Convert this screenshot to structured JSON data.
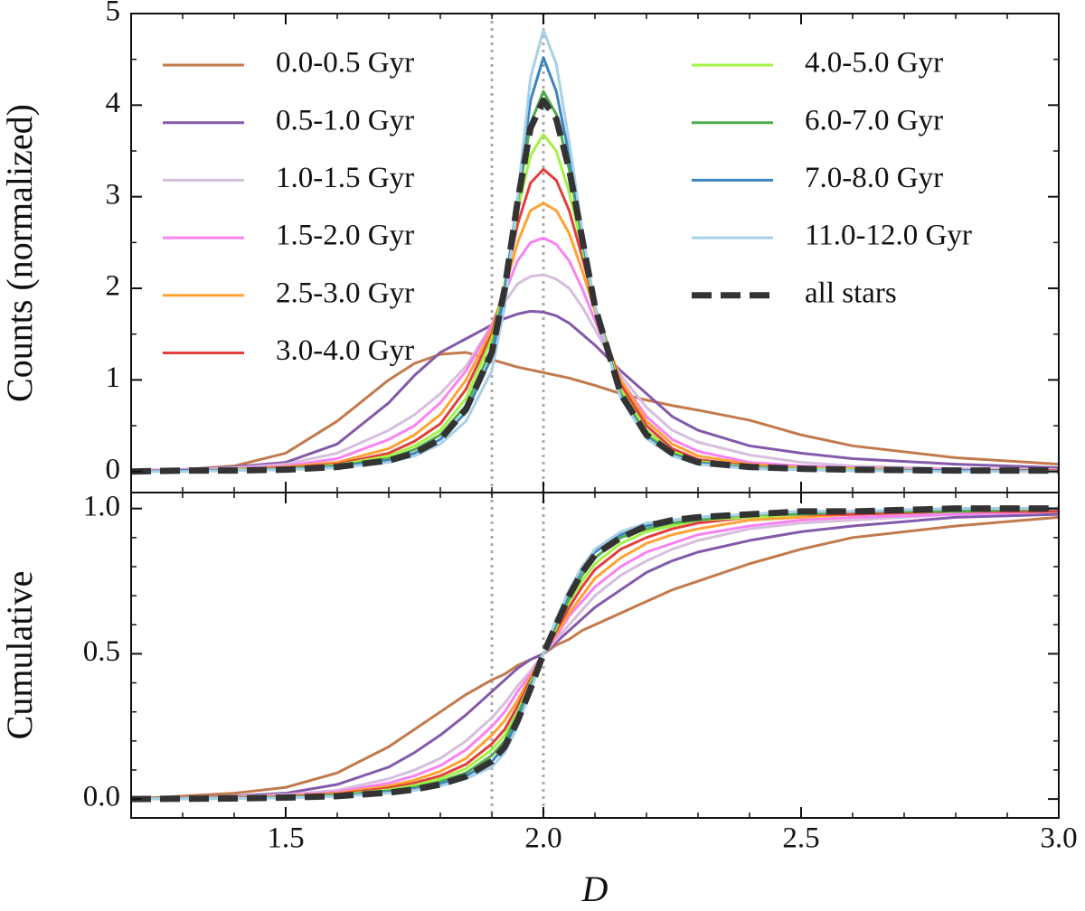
{
  "chart_data": [
    {
      "type": "line",
      "ylabel": "Counts (normalized)",
      "x": [
        1.2,
        1.3,
        1.4,
        1.5,
        1.6,
        1.7,
        1.75,
        1.8,
        1.85,
        1.9,
        1.925,
        1.95,
        1.975,
        2.0,
        2.025,
        2.05,
        2.075,
        2.1,
        2.15,
        2.2,
        2.25,
        2.3,
        2.4,
        2.5,
        2.6,
        2.8,
        3.0
      ],
      "xlim": [
        1.2,
        3.0
      ],
      "xticks": [
        1.5,
        2,
        2.5,
        3
      ],
      "show_xtick_labels": false,
      "minor_xticks": [
        1.3,
        1.4,
        1.6,
        1.7,
        1.8,
        1.9,
        2.1,
        2.2,
        2.3,
        2.4,
        2.6,
        2.7,
        2.8,
        2.9
      ],
      "ylim": [
        -0.23,
        5
      ],
      "yticks": [
        0,
        1,
        2,
        3,
        4,
        5
      ],
      "minor_yticks": [
        0.5,
        1.5,
        2.5,
        3.5,
        4.5
      ],
      "vlines": [
        1.9,
        2.0
      ],
      "legend": "upper",
      "series": [
        {
          "name": "0.0-0.5 Gyr",
          "color": "#c27a4c",
          "values": [
            0.01,
            0.02,
            0.06,
            0.2,
            0.55,
            1.0,
            1.18,
            1.28,
            1.3,
            1.22,
            1.18,
            1.14,
            1.11,
            1.08,
            1.05,
            1.02,
            0.98,
            0.94,
            0.85,
            0.78,
            0.72,
            0.67,
            0.56,
            0.4,
            0.28,
            0.15,
            0.08
          ]
        },
        {
          "name": "0.5-1.0 Gyr",
          "color": "#8359aa",
          "values": [
            0.01,
            0.02,
            0.05,
            0.1,
            0.3,
            0.75,
            1.05,
            1.3,
            1.45,
            1.6,
            1.67,
            1.72,
            1.75,
            1.74,
            1.7,
            1.62,
            1.5,
            1.38,
            1.1,
            0.85,
            0.6,
            0.45,
            0.28,
            0.2,
            0.14,
            0.08,
            0.04
          ]
        },
        {
          "name": "1.0-1.5 Gyr",
          "color": "#d6bedc",
          "values": [
            0.01,
            0.02,
            0.04,
            0.08,
            0.2,
            0.45,
            0.62,
            0.85,
            1.15,
            1.6,
            1.85,
            2.05,
            2.13,
            2.15,
            2.1,
            2.0,
            1.8,
            1.55,
            1.05,
            0.7,
            0.45,
            0.32,
            0.18,
            0.1,
            0.06,
            0.03,
            0.02
          ]
        },
        {
          "name": "1.5-2.0 Gyr",
          "color": "#f982f2",
          "values": [
            0.01,
            0.02,
            0.03,
            0.06,
            0.14,
            0.35,
            0.5,
            0.75,
            1.1,
            1.6,
            1.95,
            2.3,
            2.5,
            2.55,
            2.48,
            2.3,
            2.0,
            1.65,
            1.0,
            0.6,
            0.35,
            0.22,
            0.1,
            0.06,
            0.04,
            0.02,
            0.01
          ]
        },
        {
          "name": "2.5-3.0 Gyr",
          "color": "#ffa233",
          "values": [
            0,
            0.01,
            0.02,
            0.05,
            0.1,
            0.25,
            0.4,
            0.62,
            1.0,
            1.55,
            2.0,
            2.5,
            2.85,
            2.93,
            2.85,
            2.6,
            2.2,
            1.75,
            1.0,
            0.55,
            0.3,
            0.17,
            0.08,
            0.04,
            0.03,
            0.01,
            0.01
          ]
        },
        {
          "name": "3.0-4.0 Gyr",
          "color": "#e23e3e",
          "values": [
            0,
            0.01,
            0.02,
            0.04,
            0.08,
            0.2,
            0.33,
            0.52,
            0.9,
            1.5,
            2.05,
            2.7,
            3.15,
            3.3,
            3.18,
            2.85,
            2.35,
            1.8,
            0.95,
            0.5,
            0.25,
            0.13,
            0.06,
            0.03,
            0.02,
            0.01,
            0.01
          ]
        },
        {
          "name": "4.0-5.0 Gyr",
          "color": "#a3f244",
          "values": [
            0,
            0.01,
            0.02,
            0.03,
            0.07,
            0.17,
            0.28,
            0.45,
            0.8,
            1.45,
            2.05,
            2.85,
            3.45,
            3.68,
            3.5,
            3.05,
            2.45,
            1.8,
            0.9,
            0.45,
            0.22,
            0.11,
            0.05,
            0.03,
            0.02,
            0.01,
            0
          ]
        },
        {
          "name": "6.0-7.0 Gyr",
          "color": "#4eab4e",
          "values": [
            0,
            0.01,
            0.01,
            0.03,
            0.06,
            0.14,
            0.24,
            0.4,
            0.72,
            1.35,
            2.0,
            2.95,
            3.8,
            4.15,
            3.9,
            3.3,
            2.55,
            1.8,
            0.85,
            0.4,
            0.2,
            0.1,
            0.04,
            0.02,
            0.01,
            0.01,
            0
          ]
        },
        {
          "name": "7.0-8.0 Gyr",
          "color": "#3c84bf",
          "values": [
            0,
            0.01,
            0.01,
            0.02,
            0.05,
            0.12,
            0.2,
            0.35,
            0.65,
            1.25,
            1.95,
            3.0,
            4.05,
            4.52,
            4.15,
            3.45,
            2.6,
            1.8,
            0.82,
            0.38,
            0.18,
            0.09,
            0.04,
            0.02,
            0.01,
            0.01,
            0
          ]
        },
        {
          "name": "11.0-12.0 Gyr",
          "color": "#a8d0e6",
          "values": [
            0,
            0,
            0.01,
            0.02,
            0.04,
            0.1,
            0.17,
            0.3,
            0.55,
            1.1,
            1.8,
            3.0,
            4.3,
            4.82,
            4.45,
            3.6,
            2.65,
            1.8,
            0.8,
            0.36,
            0.17,
            0.08,
            0.03,
            0.02,
            0.01,
            0,
            0
          ]
        },
        {
          "name": "all stars",
          "color": "#333333",
          "linestyle": "dashed",
          "values": [
            0,
            0.01,
            0.01,
            0.02,
            0.05,
            0.12,
            0.2,
            0.35,
            0.68,
            1.3,
            2.0,
            2.95,
            3.75,
            4.05,
            3.85,
            3.3,
            2.55,
            1.8,
            0.85,
            0.4,
            0.2,
            0.1,
            0.05,
            0.03,
            0.02,
            0.01,
            0.01
          ]
        }
      ]
    },
    {
      "type": "line",
      "xlabel": "D",
      "ylabel": "Cumulative",
      "x": [
        1.2,
        1.3,
        1.4,
        1.5,
        1.6,
        1.7,
        1.75,
        1.8,
        1.85,
        1.9,
        1.925,
        1.95,
        1.975,
        2.0,
        2.025,
        2.05,
        2.075,
        2.1,
        2.15,
        2.2,
        2.25,
        2.3,
        2.4,
        2.5,
        2.6,
        2.8,
        3.0
      ],
      "xlim": [
        1.2,
        3.0
      ],
      "xticks": [
        1.5,
        {
          "value": 2,
          "label": "2.0"
        },
        2.5,
        {
          "value": 3,
          "label": "3.0"
        }
      ],
      "show_xtick_labels": true,
      "minor_xticks": [
        1.3,
        1.4,
        1.6,
        1.7,
        1.8,
        1.9,
        2.1,
        2.2,
        2.3,
        2.4,
        2.6,
        2.7,
        2.8,
        2.9
      ],
      "ylim": [
        -0.065,
        1.055
      ],
      "yticks": [
        {
          "value": 0,
          "label": "0.0"
        },
        0.5,
        {
          "value": 1,
          "label": "1.0"
        }
      ],
      "minor_yticks": [
        0.1,
        0.2,
        0.3,
        0.4,
        0.6,
        0.7,
        0.8,
        0.9
      ],
      "vlines": [
        1.9,
        2.0
      ],
      "series": [
        {
          "color": "#c27a4c",
          "values": [
            0,
            0.01,
            0.02,
            0.04,
            0.09,
            0.18,
            0.24,
            0.3,
            0.36,
            0.41,
            0.43,
            0.46,
            0.48,
            0.5,
            0.53,
            0.55,
            0.58,
            0.6,
            0.64,
            0.68,
            0.72,
            0.75,
            0.81,
            0.86,
            0.9,
            0.94,
            0.97
          ]
        },
        {
          "color": "#8359aa",
          "values": [
            0,
            0.005,
            0.01,
            0.02,
            0.05,
            0.11,
            0.16,
            0.22,
            0.29,
            0.37,
            0.41,
            0.45,
            0.48,
            0.5,
            0.54,
            0.58,
            0.62,
            0.66,
            0.72,
            0.78,
            0.82,
            0.85,
            0.89,
            0.92,
            0.94,
            0.97,
            0.98
          ]
        },
        {
          "color": "#d6bedc",
          "values": [
            0,
            0.004,
            0.008,
            0.015,
            0.03,
            0.07,
            0.1,
            0.14,
            0.2,
            0.28,
            0.33,
            0.39,
            0.44,
            0.5,
            0.55,
            0.6,
            0.65,
            0.7,
            0.77,
            0.82,
            0.86,
            0.89,
            0.93,
            0.95,
            0.96,
            0.98,
            0.99
          ]
        },
        {
          "color": "#f982f2",
          "values": [
            0,
            0.003,
            0.006,
            0.012,
            0.025,
            0.055,
            0.08,
            0.115,
            0.17,
            0.25,
            0.3,
            0.37,
            0.43,
            0.5,
            0.56,
            0.63,
            0.68,
            0.73,
            0.8,
            0.85,
            0.88,
            0.91,
            0.94,
            0.96,
            0.97,
            0.98,
            0.99
          ]
        },
        {
          "color": "#ffa233",
          "values": [
            0,
            0.003,
            0.005,
            0.01,
            0.02,
            0.045,
            0.065,
            0.095,
            0.14,
            0.22,
            0.27,
            0.34,
            0.42,
            0.5,
            0.57,
            0.64,
            0.7,
            0.76,
            0.83,
            0.88,
            0.91,
            0.93,
            0.96,
            0.97,
            0.98,
            0.99,
            0.99
          ]
        },
        {
          "color": "#e23e3e",
          "values": [
            0,
            0.002,
            0.004,
            0.008,
            0.017,
            0.038,
            0.055,
            0.08,
            0.12,
            0.19,
            0.24,
            0.32,
            0.41,
            0.5,
            0.58,
            0.66,
            0.73,
            0.79,
            0.86,
            0.9,
            0.93,
            0.95,
            0.97,
            0.98,
            0.98,
            0.99,
            0.99
          ]
        },
        {
          "color": "#a3f244",
          "values": [
            0,
            0.002,
            0.003,
            0.007,
            0.014,
            0.032,
            0.047,
            0.07,
            0.105,
            0.17,
            0.22,
            0.3,
            0.4,
            0.5,
            0.59,
            0.68,
            0.75,
            0.81,
            0.88,
            0.92,
            0.94,
            0.96,
            0.97,
            0.98,
            0.99,
            0.99,
            1.0
          ]
        },
        {
          "color": "#4eab4e",
          "values": [
            0,
            0.002,
            0.003,
            0.006,
            0.012,
            0.028,
            0.04,
            0.06,
            0.09,
            0.15,
            0.2,
            0.29,
            0.39,
            0.5,
            0.6,
            0.69,
            0.77,
            0.83,
            0.9,
            0.93,
            0.95,
            0.96,
            0.98,
            0.98,
            0.99,
            0.99,
            1.0
          ]
        },
        {
          "color": "#3c84bf",
          "values": [
            0,
            0.001,
            0.002,
            0.005,
            0.01,
            0.024,
            0.035,
            0.052,
            0.08,
            0.13,
            0.18,
            0.27,
            0.38,
            0.5,
            0.61,
            0.71,
            0.79,
            0.85,
            0.91,
            0.94,
            0.96,
            0.97,
            0.98,
            0.99,
            0.99,
            1.0,
            1.0
          ]
        },
        {
          "color": "#a8d0e6",
          "values": [
            0,
            0.001,
            0.002,
            0.004,
            0.009,
            0.02,
            0.03,
            0.045,
            0.07,
            0.11,
            0.16,
            0.25,
            0.37,
            0.5,
            0.62,
            0.72,
            0.8,
            0.86,
            0.92,
            0.95,
            0.96,
            0.97,
            0.98,
            0.99,
            0.99,
            1.0,
            1.0
          ]
        },
        {
          "color": "#333333",
          "linestyle": "dashed",
          "values": [
            0,
            0.001,
            0.002,
            0.005,
            0.01,
            0.022,
            0.033,
            0.05,
            0.078,
            0.13,
            0.18,
            0.27,
            0.38,
            0.5,
            0.6,
            0.7,
            0.78,
            0.84,
            0.9,
            0.94,
            0.96,
            0.97,
            0.98,
            0.99,
            0.99,
            1.0,
            1.0
          ]
        }
      ]
    }
  ]
}
